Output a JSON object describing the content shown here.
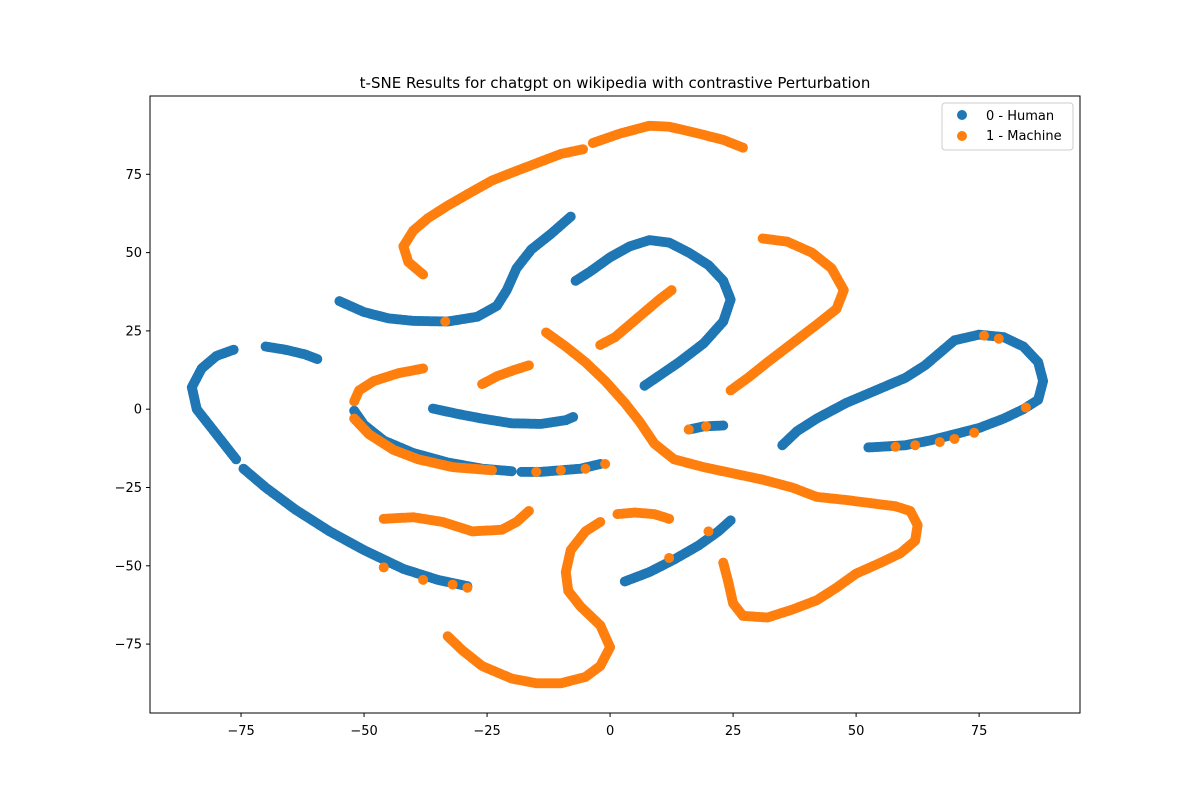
{
  "chart_data": {
    "type": "scatter",
    "title": "t-SNE Results for chatgpt on wikipedia with contrastive Perturbation",
    "xlabel": "",
    "ylabel": "",
    "xlim": [
      -93.5,
      95.5
    ],
    "ylim": [
      -97,
      100
    ],
    "xticks": [
      -75,
      -50,
      -25,
      0,
      25,
      50,
      75
    ],
    "yticks": [
      -75,
      -50,
      -25,
      0,
      25,
      50,
      75
    ],
    "xtick_labels": [
      "−75",
      "−50",
      "−25",
      "0",
      "25",
      "50",
      "75"
    ],
    "ytick_labels": [
      "−75",
      "−50",
      "−25",
      "0",
      "25",
      "50",
      "75"
    ],
    "grid": false,
    "legend_position": "upper-right",
    "series": [
      {
        "name": "0 - Human",
        "color": "#1f77b4",
        "curves": [
          [
            [
              -76.5,
              19
            ],
            [
              -80,
              17
            ],
            [
              -83,
              13
            ],
            [
              -85,
              7
            ],
            [
              -84,
              0
            ],
            [
              -81,
              -6
            ],
            [
              -78,
              -12
            ],
            [
              -76,
              -16
            ]
          ],
          [
            [
              -70,
              20
            ],
            [
              -66,
              19
            ],
            [
              -62,
              17.5
            ],
            [
              -59.5,
              16
            ]
          ],
          [
            [
              -74.5,
              -19
            ],
            [
              -70,
              -25
            ],
            [
              -64,
              -32
            ],
            [
              -57,
              -39
            ],
            [
              -50,
              -45
            ],
            [
              -42,
              -51
            ],
            [
              -35,
              -54.5
            ],
            [
              -29,
              -56.5
            ]
          ],
          [
            [
              -55,
              34.5
            ],
            [
              -50,
              31
            ],
            [
              -45,
              29
            ],
            [
              -40,
              28.2
            ],
            [
              -33,
              28
            ],
            [
              -27,
              29.5
            ],
            [
              -23,
              33
            ],
            [
              -21,
              38
            ],
            [
              -19,
              45
            ],
            [
              -16,
              51
            ],
            [
              -12,
              56
            ],
            [
              -8,
              61.5
            ]
          ],
          [
            [
              -7,
              41
            ],
            [
              -4,
              44
            ],
            [
              0,
              48.5
            ],
            [
              4,
              52
            ],
            [
              8,
              54
            ],
            [
              12,
              53.2
            ],
            [
              16,
              50
            ],
            [
              20,
              46
            ],
            [
              23,
              41
            ],
            [
              24.5,
              35
            ],
            [
              23,
              28
            ],
            [
              19,
              21
            ],
            [
              14,
              15
            ],
            [
              7,
              7.5
            ]
          ],
          [
            [
              -36,
              0.2
            ],
            [
              -31,
              -1.5
            ],
            [
              -26,
              -3
            ],
            [
              -20,
              -4.5
            ],
            [
              -14,
              -4.7
            ],
            [
              -9,
              -3.5
            ],
            [
              -7.5,
              -2.5
            ]
          ],
          [
            [
              -52,
              -0.5
            ],
            [
              -50,
              -5
            ],
            [
              -46,
              -10
            ],
            [
              -40,
              -14
            ],
            [
              -33,
              -17
            ],
            [
              -26,
              -19
            ],
            [
              -20,
              -19.8
            ]
          ],
          [
            [
              -18,
              -20
            ],
            [
              -14,
              -20
            ],
            [
              -10,
              -19.5
            ],
            [
              -6,
              -19
            ],
            [
              -2,
              -17.5
            ]
          ],
          [
            [
              16,
              -6.5
            ],
            [
              19,
              -5.5
            ],
            [
              23,
              -5.2
            ]
          ],
          [
            [
              3,
              -55
            ],
            [
              8,
              -52
            ],
            [
              13,
              -48
            ],
            [
              18,
              -43.5
            ],
            [
              22,
              -39
            ],
            [
              24.5,
              -35.5
            ]
          ],
          [
            [
              35,
              -11.5
            ],
            [
              38,
              -7
            ],
            [
              42,
              -3
            ],
            [
              48,
              2
            ],
            [
              54,
              6
            ],
            [
              60,
              10
            ],
            [
              64,
              14
            ],
            [
              67,
              18
            ],
            [
              70,
              22
            ],
            [
              75,
              23.8
            ],
            [
              80,
              23
            ],
            [
              84,
              20
            ],
            [
              87,
              15
            ],
            [
              88,
              9
            ],
            [
              87,
              3
            ],
            [
              84,
              0
            ],
            [
              80,
              -3
            ],
            [
              75,
              -6
            ],
            [
              70,
              -8
            ],
            [
              65,
              -10
            ],
            [
              60,
              -11.5
            ],
            [
              55,
              -12
            ],
            [
              52.5,
              -12.2
            ]
          ]
        ],
        "points": []
      },
      {
        "name": "1 - Machine",
        "color": "#ff7f0e",
        "curves": [
          [
            [
              -38,
              43
            ],
            [
              -41,
              47
            ],
            [
              -42,
              52
            ],
            [
              -40,
              57
            ],
            [
              -37,
              61
            ],
            [
              -33,
              65
            ],
            [
              -28,
              69.5
            ],
            [
              -24,
              73
            ],
            [
              -20,
              75.5
            ],
            [
              -15,
              78.5
            ],
            [
              -10,
              81.5
            ],
            [
              -5.5,
              83
            ]
          ],
          [
            [
              -3.5,
              85
            ],
            [
              2,
              88
            ],
            [
              8,
              90.5
            ],
            [
              12,
              90.2
            ],
            [
              18,
              88
            ],
            [
              23,
              86
            ],
            [
              27,
              83.5
            ]
          ],
          [
            [
              31,
              54.5
            ],
            [
              36,
              53.5
            ],
            [
              41,
              50
            ],
            [
              45,
              45
            ],
            [
              47.5,
              38
            ],
            [
              46,
              32
            ],
            [
              42,
              27
            ],
            [
              37,
              21
            ],
            [
              32,
              15
            ],
            [
              28,
              10
            ],
            [
              24.5,
              6
            ]
          ],
          [
            [
              -2,
              20.5
            ],
            [
              1,
              23
            ],
            [
              4,
              27
            ],
            [
              7,
              31
            ],
            [
              10,
              35
            ],
            [
              12.5,
              38
            ]
          ],
          [
            [
              -26,
              8
            ],
            [
              -23,
              10.5
            ],
            [
              -19.5,
              12.5
            ],
            [
              -16.5,
              14
            ]
          ],
          [
            [
              -38,
              13
            ],
            [
              -43,
              11.5
            ],
            [
              -48,
              9
            ],
            [
              -51,
              6
            ],
            [
              -52,
              2.5
            ]
          ],
          [
            [
              -52,
              -3
            ],
            [
              -49,
              -8
            ],
            [
              -44,
              -13
            ],
            [
              -39,
              -16
            ],
            [
              -32,
              -18.5
            ],
            [
              -24,
              -19.5
            ]
          ],
          [
            [
              -13,
              24.5
            ],
            [
              -9,
              20
            ],
            [
              -5,
              15
            ],
            [
              -1,
              9
            ],
            [
              3,
              2
            ],
            [
              6,
              -4
            ],
            [
              9,
              -11
            ],
            [
              13,
              -16
            ],
            [
              19,
              -18.5
            ],
            [
              25,
              -20.5
            ],
            [
              31,
              -22.5
            ],
            [
              37,
              -25
            ],
            [
              42,
              -28
            ],
            [
              48,
              -29
            ],
            [
              53,
              -30
            ],
            [
              58,
              -31
            ],
            [
              61,
              -32.5
            ],
            [
              62.5,
              -37
            ],
            [
              62,
              -42
            ],
            [
              59,
              -46
            ],
            [
              55,
              -49
            ],
            [
              50,
              -52.5
            ],
            [
              46,
              -57
            ],
            [
              42,
              -61
            ],
            [
              37,
              -64
            ],
            [
              32,
              -66.5
            ],
            [
              27,
              -66
            ],
            [
              25,
              -62
            ],
            [
              24,
              -55
            ],
            [
              23,
              -49
            ]
          ],
          [
            [
              -46,
              -35
            ],
            [
              -40,
              -34.5
            ],
            [
              -34,
              -36
            ],
            [
              -28,
              -39
            ],
            [
              -22,
              -38.5
            ],
            [
              -19,
              -36
            ],
            [
              -16.5,
              -32.5
            ]
          ],
          [
            [
              -2,
              -36
            ],
            [
              -5,
              -39
            ],
            [
              -8,
              -45
            ],
            [
              -9,
              -52
            ],
            [
              -8.5,
              -58
            ],
            [
              -6,
              -63
            ],
            [
              -2,
              -69
            ],
            [
              0,
              -76
            ],
            [
              -2,
              -82
            ],
            [
              -5,
              -85.5
            ],
            [
              -10,
              -87.5
            ],
            [
              -15,
              -87.5
            ],
            [
              -20,
              -86
            ],
            [
              -26,
              -82
            ],
            [
              -30,
              -77
            ],
            [
              -33,
              -72.5
            ]
          ],
          [
            [
              1.5,
              -33.5
            ],
            [
              5,
              -33
            ],
            [
              9,
              -33.5
            ],
            [
              12,
              -35
            ]
          ]
        ],
        "points": [
          [
            -33.5,
            28
          ],
          [
            -15,
            -20
          ],
          [
            -10,
            -19.5
          ],
          [
            -5,
            -19
          ],
          [
            -1,
            -17.5
          ],
          [
            16,
            -6.5
          ],
          [
            19.5,
            -5.5
          ],
          [
            12,
            -47.5
          ],
          [
            20,
            -39
          ],
          [
            -46,
            -50.5
          ],
          [
            -38,
            -54.5
          ],
          [
            -32,
            -56
          ],
          [
            -29,
            -57
          ],
          [
            58,
            -12
          ],
          [
            62,
            -11.5
          ],
          [
            67,
            -10.5
          ],
          [
            70,
            -9.5
          ],
          [
            74,
            -7.5
          ],
          [
            76,
            23.5
          ],
          [
            79,
            22.5
          ],
          [
            84.5,
            0.5
          ]
        ]
      }
    ]
  }
}
